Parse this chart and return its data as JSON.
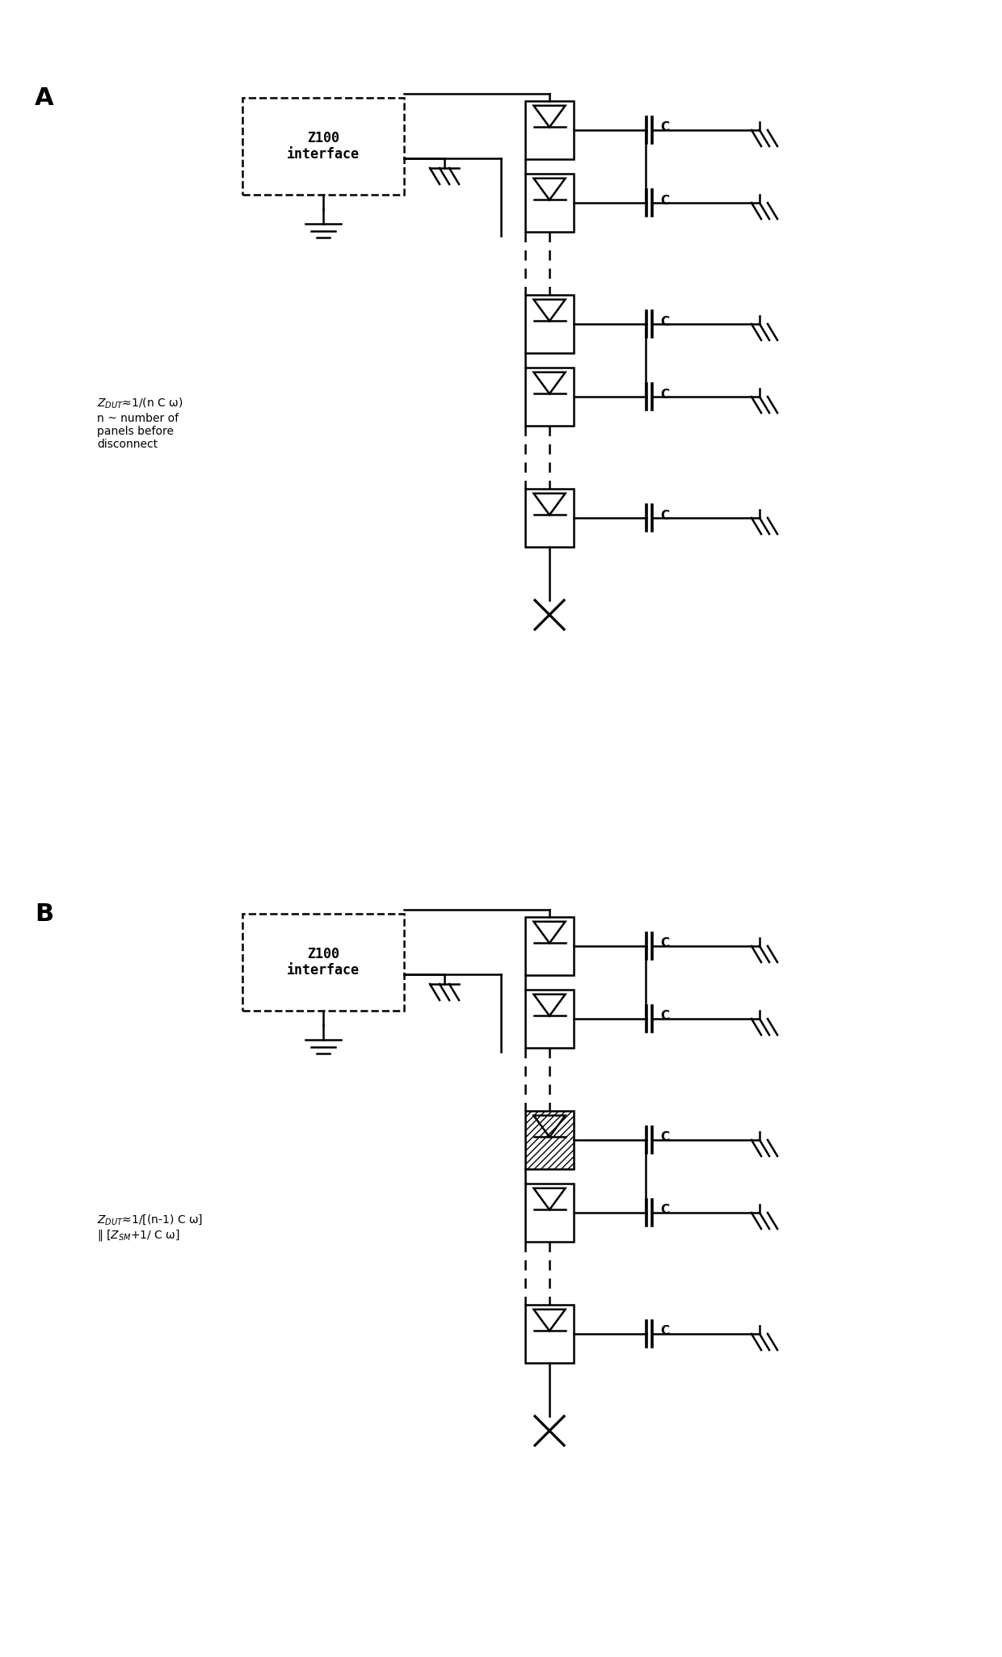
{
  "bg_color": "#ffffff",
  "line_color": "#000000",
  "label_A": "A",
  "label_B": "B",
  "box_text_A": "Z100\ninterface",
  "box_text_B": "Z100\ninterface",
  "formula_A": "Z$_{DUT}$≈1/(n C ω)\nn ~ number of\npanels before\ndisconnect",
  "formula_B": "Z$_{DUT}$≈1/[(n-1) C ω]\n‖ [Z$_{SM}$+1/ C ω]",
  "n_modules_A": 5,
  "n_modules_B": 5,
  "faulty_module_B": 2
}
